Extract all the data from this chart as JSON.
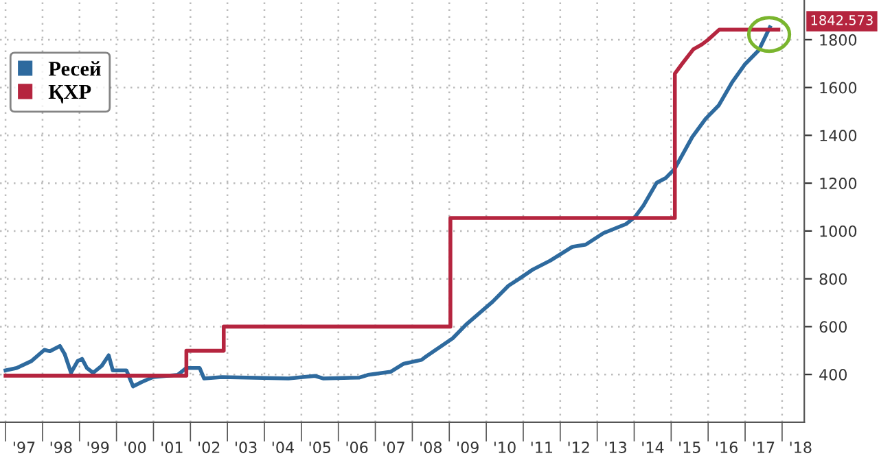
{
  "chart_data": {
    "type": "line",
    "series": [
      {
        "name": "Ресей",
        "color": "#2e6a9e",
        "x": [
          1996.5,
          1996.8,
          1997.2,
          1997.55,
          1997.7,
          1997.97,
          1998.1,
          1998.27,
          1998.45,
          1998.57,
          1998.7,
          1998.87,
          1999.1,
          1999.29,
          1999.4,
          1999.77,
          1999.95,
          2000.19,
          2000.49,
          2001.15,
          2001.39,
          2001.75,
          2001.87,
          2002.35,
          2004.15,
          2004.87,
          2005.1,
          2006.07,
          2006.3,
          2006.91,
          2007.27,
          2007.75,
          2007.87,
          2008.23,
          2008.59,
          2008.95,
          2009.31,
          2009.67,
          2010.1,
          2010.39,
          2010.75,
          2011.23,
          2011.83,
          2012.19,
          2012.67,
          2013.28,
          2013.52,
          2013.75,
          2014.11,
          2014.35,
          2014.59,
          2015.07,
          2015.43,
          2015.79,
          2016.15,
          2016.5,
          2016.87,
          2017.17
        ],
        "values": [
          417,
          427,
          456,
          503,
          497,
          519,
          485,
          407,
          456,
          465,
          427,
          407,
          436,
          480,
          417,
          417,
          350,
          369,
          389,
          398,
          427,
          427,
          383,
          389,
          383,
          394,
          383,
          387,
          398,
          411,
          445,
          461,
          475,
          513,
          551,
          608,
          656,
          704,
          771,
          800,
          838,
          876,
          934,
          943,
          991,
          1029,
          1058,
          1106,
          1202,
          1221,
          1259,
          1393,
          1469,
          1526,
          1622,
          1698,
          1756,
          1852
        ]
      },
      {
        "name": "ҚХР",
        "color": "#b5253f",
        "x": [
          1996.5,
          2001.39,
          2001.39,
          2002.4,
          2002.4,
          2008.53,
          2008.53,
          2014.6,
          2014.6,
          2014.8,
          2015.1,
          2015.33,
          2015.5,
          2015.8,
          2017.4
        ],
        "values": [
          395,
          395,
          499,
          499,
          600,
          600,
          1054,
          1054,
          1658,
          1700,
          1760,
          1780,
          1800,
          1842,
          1842
        ]
      }
    ],
    "xlim": [
      1996.35,
      2018.1
    ],
    "xticks": [
      {
        "value": 1997,
        "label": "'97"
      },
      {
        "value": 1998,
        "label": "'98"
      },
      {
        "value": 1999,
        "label": "'99"
      },
      {
        "value": 2000,
        "label": "'00"
      },
      {
        "value": 2001,
        "label": "'01"
      },
      {
        "value": 2002,
        "label": "'02"
      },
      {
        "value": 2003,
        "label": "'03"
      },
      {
        "value": 2004,
        "label": "'04"
      },
      {
        "value": 2005,
        "label": "'05"
      },
      {
        "value": 2006,
        "label": "'06"
      },
      {
        "value": 2007,
        "label": "'07"
      },
      {
        "value": 2008,
        "label": "'08"
      },
      {
        "value": 2009,
        "label": "'09"
      },
      {
        "value": 2010,
        "label": "'10"
      },
      {
        "value": 2011,
        "label": "'11"
      },
      {
        "value": 2012,
        "label": "'12"
      },
      {
        "value": 2013,
        "label": "'13"
      },
      {
        "value": 2014,
        "label": "'14"
      },
      {
        "value": 2015,
        "label": "'15"
      },
      {
        "value": 2016,
        "label": "'16"
      },
      {
        "value": 2017,
        "label": "'17"
      },
      {
        "value": 2018,
        "label": "'18"
      },
      {
        "value": 1996.5,
        "label": null
      },
      {
        "value": 1997.5,
        "label": null
      },
      {
        "value": 1998.5,
        "label": null
      },
      {
        "value": 1999.5,
        "label": null
      },
      {
        "value": 2000.5,
        "label": null
      },
      {
        "value": 2001.5,
        "label": null
      },
      {
        "value": 2002.5,
        "label": null
      },
      {
        "value": 2003.5,
        "label": null
      },
      {
        "value": 2004.5,
        "label": null
      },
      {
        "value": 2005.5,
        "label": null
      },
      {
        "value": 2006.5,
        "label": null
      },
      {
        "value": 2007.5,
        "label": null
      },
      {
        "value": 2008.5,
        "label": null
      },
      {
        "value": 2009.5,
        "label": null
      },
      {
        "value": 2010.5,
        "label": null
      },
      {
        "value": 2011.5,
        "label": null
      },
      {
        "value": 2012.5,
        "label": null
      },
      {
        "value": 2013.5,
        "label": null
      },
      {
        "value": 2014.5,
        "label": null
      },
      {
        "value": 2015.5,
        "label": null
      },
      {
        "value": 2016.5,
        "label": null
      },
      {
        "value": 2017.5,
        "label": null
      }
    ],
    "ylim": [
      200,
      1966
    ],
    "yticks": [
      400,
      600,
      800,
      1000,
      1200,
      1400,
      1600,
      1800
    ],
    "annotations": [
      "1842.573"
    ],
    "grid": true,
    "legend": "top left",
    "line_style": "solid",
    "marker": "none"
  }
}
